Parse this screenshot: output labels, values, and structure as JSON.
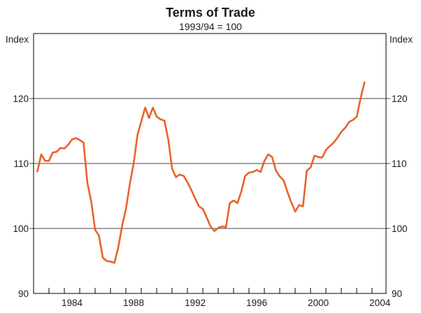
{
  "header": {
    "title": "Terms of Trade",
    "subtitle": "1993/94 = 100"
  },
  "axes": {
    "y_left": {
      "unit": "Index",
      "ticks": [
        90,
        100,
        110,
        120
      ]
    },
    "y_right": {
      "unit": "Index",
      "ticks": [
        90,
        100,
        110,
        120
      ]
    },
    "x": {
      "labeled_years": [
        1984,
        1988,
        1992,
        1996,
        2000,
        2004
      ],
      "minor_tick_year_start": 1982,
      "minor_tick_year_end": 2004
    }
  },
  "chart_data": {
    "type": "line",
    "title": "Terms of Trade",
    "subtitle": "1993/94 = 100",
    "xlabel": "",
    "ylabel": "Index",
    "ylim": [
      90,
      130
    ],
    "xlim": [
      1982,
      2004.9
    ],
    "gridlines_y": [
      100,
      110,
      120
    ],
    "grid": true,
    "legend": "none",
    "frequency": "quarterly",
    "x_start": 1982.25,
    "x_step": 0.25,
    "series": [
      {
        "name": "Terms of trade (1993/94 = 100)",
        "color": "#E8632C",
        "values": [
          108.8,
          111.4,
          110.4,
          110.4,
          111.7,
          111.8,
          112.4,
          112.3,
          112.9,
          113.7,
          113.9,
          113.6,
          113.2,
          107.0,
          104.1,
          99.8,
          98.9,
          95.5,
          95.0,
          94.9,
          94.7,
          97.0,
          100.4,
          103.0,
          106.8,
          110.0,
          114.4,
          116.5,
          118.6,
          117.0,
          118.6,
          117.2,
          116.8,
          116.6,
          113.7,
          109.2,
          107.9,
          108.3,
          108.1,
          107.1,
          105.9,
          104.6,
          103.4,
          103.0,
          101.7,
          100.3,
          99.6,
          100.1,
          100.3,
          100.2,
          103.9,
          104.3,
          103.9,
          105.7,
          108.1,
          108.6,
          108.7,
          109.0,
          108.7,
          110.4,
          111.4,
          111.0,
          108.9,
          108.0,
          107.4,
          105.6,
          104.0,
          102.6,
          103.6,
          103.4,
          108.9,
          109.4,
          111.2,
          111.0,
          110.9,
          112.1,
          112.7,
          113.2,
          114.0,
          114.9,
          115.5,
          116.4,
          116.7,
          117.2,
          120.1,
          122.5
        ]
      }
    ]
  },
  "colors": {
    "line": "#E8632C",
    "grid": "#444444",
    "frame": "#000000",
    "text": "#1c1c1c",
    "background": "#ffffff"
  }
}
